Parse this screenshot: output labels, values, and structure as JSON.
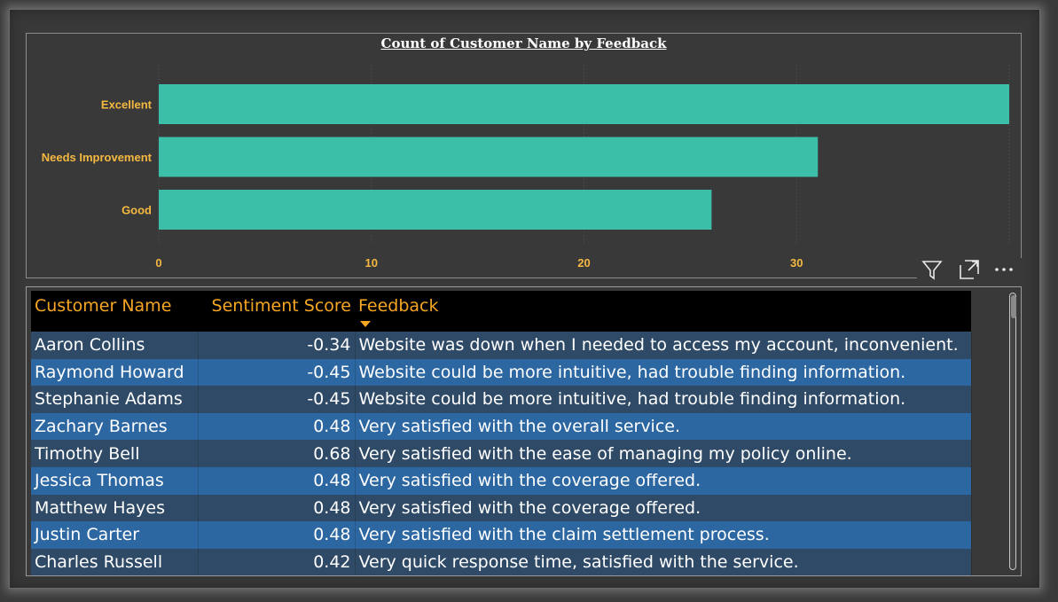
{
  "chart_data": {
    "type": "bar",
    "orientation": "horizontal",
    "title": "Count of Customer Name by Feedback",
    "categories": [
      "Excellent",
      "Needs Improvement",
      "Good"
    ],
    "values": [
      40,
      31,
      26
    ],
    "xlim": [
      0,
      40
    ],
    "xticks": [
      0,
      10,
      20,
      30
    ],
    "xlabel": "",
    "ylabel": "",
    "grid": true,
    "bar_color": "#3bbfa8",
    "label_color": "#f5b942"
  },
  "visual_header": {
    "filter_icon": "filter-icon",
    "focus_icon": "focus-mode-icon",
    "more_icon": "more-options-icon"
  },
  "table": {
    "columns": [
      "Customer Name",
      "Sentiment Score",
      "Feedback"
    ],
    "sort_column": "Feedback",
    "rows": [
      {
        "name": "Aaron Collins",
        "score": "-0.34",
        "feedback": "Website was down when I needed to access my account, inconvenient."
      },
      {
        "name": "Raymond Howard",
        "score": "-0.45",
        "feedback": "Website could be more intuitive, had trouble finding information."
      },
      {
        "name": "Stephanie Adams",
        "score": "-0.45",
        "feedback": "Website could be more intuitive, had trouble finding information."
      },
      {
        "name": "Zachary Barnes",
        "score": "0.48",
        "feedback": "Very satisfied with the overall service."
      },
      {
        "name": "Timothy Bell",
        "score": "0.68",
        "feedback": "Very satisfied with the ease of managing my policy online."
      },
      {
        "name": "Jessica Thomas",
        "score": "0.48",
        "feedback": "Very satisfied with the coverage offered."
      },
      {
        "name": "Matthew Hayes",
        "score": "0.48",
        "feedback": "Very satisfied with the coverage offered."
      },
      {
        "name": "Justin Carter",
        "score": "0.48",
        "feedback": "Very satisfied with the claim settlement process."
      },
      {
        "name": "Charles Russell",
        "score": "0.42",
        "feedback": "Very quick response time, satisfied with the service."
      }
    ]
  },
  "colors": {
    "header_text": "#f5a623",
    "row_odd": "#2f4a66",
    "row_even": "#2c67a2",
    "background": "#393939"
  }
}
